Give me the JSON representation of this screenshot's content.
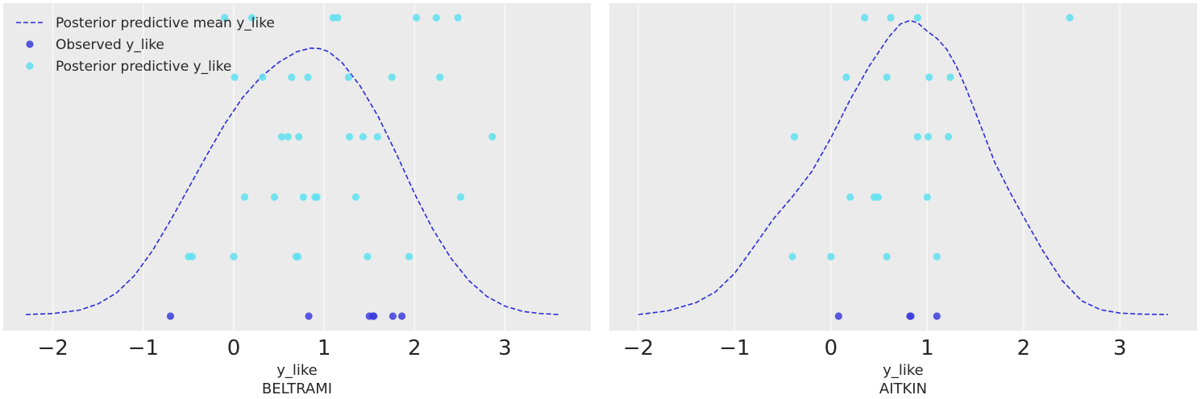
{
  "chart_data": [
    {
      "type": "scatter",
      "panel": "BELTRAMI",
      "xlabel_line1": "y_like",
      "xlabel_line2": "BELTRAMI",
      "xlim": [
        -2.55,
        3.95
      ],
      "xticks": [
        -2,
        -1,
        0,
        1,
        2,
        3
      ],
      "xtick_labels": [
        "−2",
        "−1",
        "0",
        "1",
        "2",
        "3"
      ],
      "grid": true,
      "legend_placement": "top-left",
      "legend": [
        {
          "label": "Posterior predictive mean y_like",
          "kind": "dashed-line",
          "color": "#2a2ad8"
        },
        {
          "label": "Observed y_like",
          "kind": "dot",
          "color": "#3c3cdc"
        },
        {
          "label": "Posterior predictive y_like",
          "kind": "dot",
          "color": "#5ee0f0"
        }
      ],
      "observed": {
        "name": "Observed y_like",
        "color": "#3c3cdc",
        "x": [
          -0.7,
          0.83,
          1.5,
          1.54,
          1.55,
          1.76,
          1.86
        ]
      },
      "posterior_predictive": {
        "name": "Posterior predictive y_like",
        "color": "#5ee0f0",
        "rows": [
          [
            -0.1,
            0.2,
            1.1,
            1.15,
            2.02,
            2.24,
            2.48
          ],
          [
            0.01,
            0.32,
            0.64,
            0.82,
            1.27,
            1.75,
            2.28
          ],
          [
            0.53,
            0.6,
            0.72,
            1.28,
            1.43,
            1.59,
            2.86
          ],
          [
            0.12,
            0.45,
            0.77,
            0.9,
            0.92,
            1.35,
            2.51
          ],
          [
            -0.5,
            -0.46,
            0.0,
            0.69,
            0.71,
            1.48,
            1.94
          ]
        ]
      },
      "posterior_mean": {
        "name": "Posterior predictive mean y_like",
        "color": "#2a2ad8",
        "x": [
          -2.3,
          -2.0,
          -1.7,
          -1.5,
          -1.3,
          -1.1,
          -0.9,
          -0.7,
          -0.5,
          -0.3,
          -0.1,
          0.1,
          0.3,
          0.5,
          0.7,
          0.85,
          0.95,
          1.05,
          1.2,
          1.4,
          1.6,
          1.8,
          2.0,
          2.2,
          2.4,
          2.6,
          2.8,
          3.0,
          3.2,
          3.4,
          3.6
        ],
        "y": [
          0.0,
          0.004,
          0.019,
          0.045,
          0.09,
          0.163,
          0.268,
          0.395,
          0.531,
          0.668,
          0.8,
          0.912,
          0.997,
          1.06,
          1.104,
          1.119,
          1.117,
          1.104,
          1.057,
          0.959,
          0.83,
          0.674,
          0.508,
          0.36,
          0.238,
          0.143,
          0.076,
          0.035,
          0.013,
          0.004,
          0.0
        ]
      }
    },
    {
      "type": "scatter",
      "panel": "AITKIN",
      "xlabel_line1": "y_like",
      "xlabel_line2": "AITKIN",
      "xlim": [
        -2.3,
        3.8
      ],
      "xticks": [
        -2,
        -1,
        0,
        1,
        2,
        3
      ],
      "xtick_labels": [
        "−2",
        "−1",
        "0",
        "1",
        "2",
        "3"
      ],
      "grid": true,
      "observed": {
        "name": "Observed y_like",
        "color": "#3c3cdc",
        "x": [
          0.08,
          0.82,
          0.83,
          1.1
        ]
      },
      "posterior_predictive": {
        "name": "Posterior predictive y_like",
        "color": "#5ee0f0",
        "rows": [
          [
            0.35,
            0.62,
            0.9,
            2.48
          ],
          [
            0.16,
            0.58,
            1.02,
            1.24
          ],
          [
            -0.38,
            0.9,
            1.01,
            1.22
          ],
          [
            0.2,
            0.45,
            0.49,
            1.0
          ],
          [
            -0.4,
            0.0,
            0.58,
            1.1
          ]
        ]
      },
      "posterior_mean": {
        "name": "Posterior predictive mean y_like",
        "color": "#2a2ad8",
        "x": [
          -2.0,
          -1.7,
          -1.4,
          -1.2,
          -1.0,
          -0.8,
          -0.6,
          -0.4,
          -0.2,
          0.0,
          0.2,
          0.4,
          0.6,
          0.72,
          0.82,
          0.9,
          1.0,
          1.1,
          1.2,
          1.3,
          1.4,
          1.5,
          1.6,
          1.7,
          1.85,
          2.0,
          2.2,
          2.4,
          2.6,
          2.8,
          3.0,
          3.2,
          3.5
        ],
        "y": [
          0.0,
          0.015,
          0.05,
          0.095,
          0.173,
          0.285,
          0.4,
          0.495,
          0.6,
          0.742,
          0.903,
          1.045,
          1.165,
          1.22,
          1.235,
          1.225,
          1.19,
          1.16,
          1.115,
          1.045,
          0.953,
          0.85,
          0.745,
          0.64,
          0.52,
          0.41,
          0.268,
          0.143,
          0.058,
          0.02,
          0.006,
          0.002,
          0.0
        ]
      }
    }
  ]
}
